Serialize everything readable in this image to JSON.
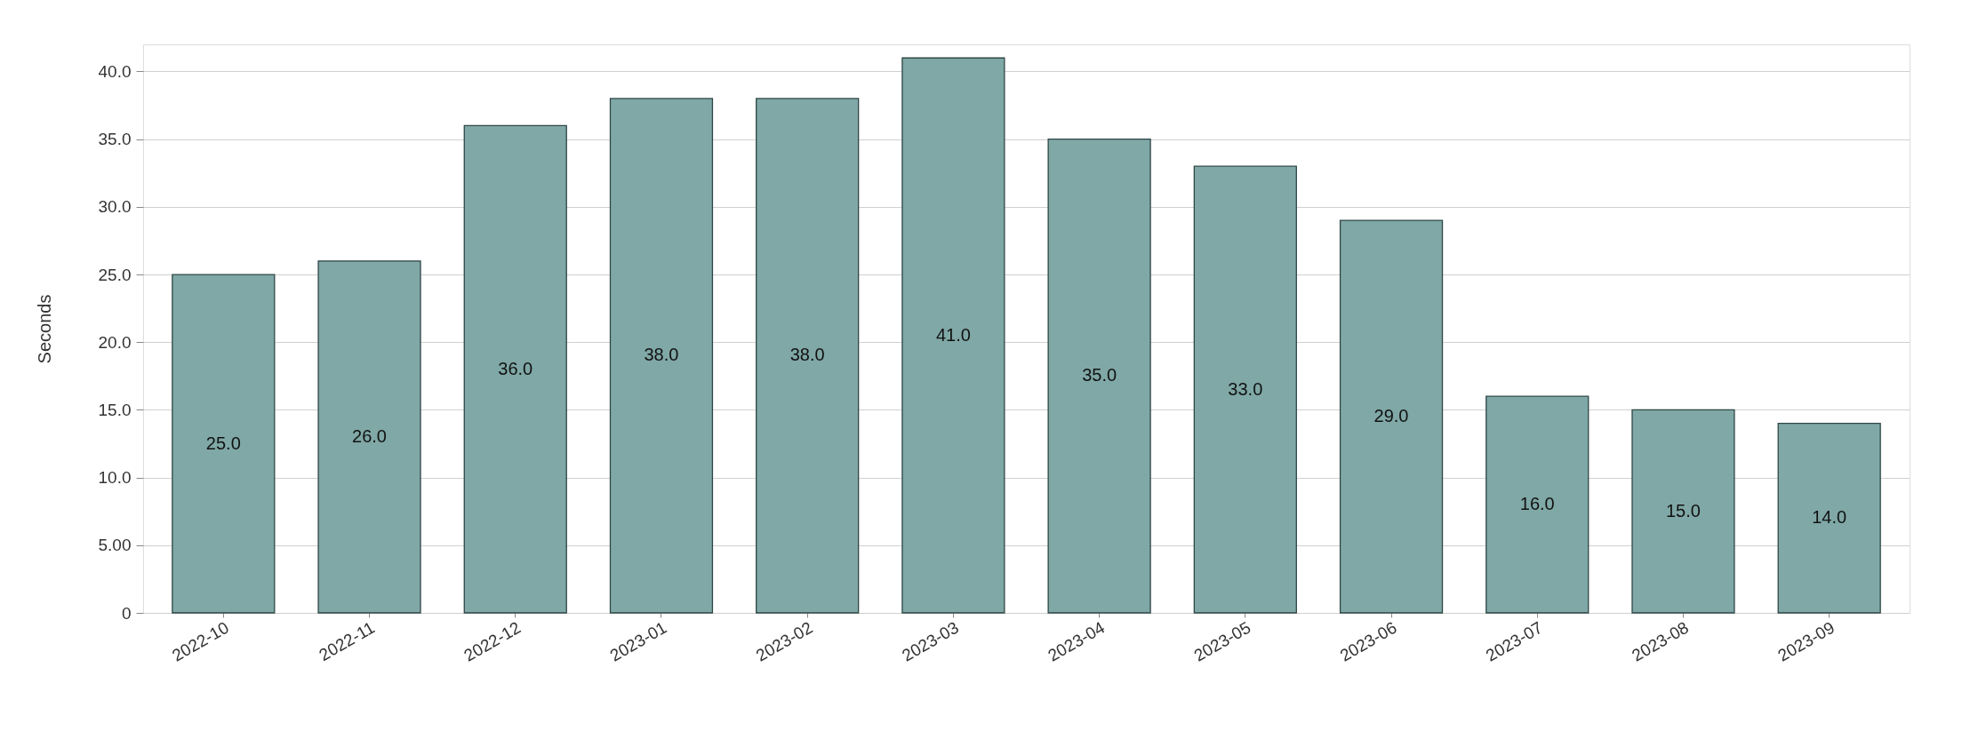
{
  "chart_data": {
    "type": "bar",
    "ylabel": "Seconds",
    "categories": [
      "2022-10",
      "2022-11",
      "2022-12",
      "2023-01",
      "2023-02",
      "2023-03",
      "2023-04",
      "2023-05",
      "2023-06",
      "2023-07",
      "2023-08",
      "2023-09"
    ],
    "values": [
      25.0,
      26.0,
      36.0,
      38.0,
      38.0,
      41.0,
      35.0,
      33.0,
      29.0,
      16.0,
      15.0,
      14.0
    ],
    "color": "#7fa8a6",
    "ylim": [
      0,
      42
    ],
    "yticks": [
      0,
      {
        "value": 5,
        "label": "5.00"
      },
      {
        "value": 10,
        "label": "10.0"
      },
      {
        "value": 15,
        "label": "15.0"
      },
      {
        "value": 20,
        "label": "20.0"
      },
      {
        "value": 25,
        "label": "25.0"
      },
      {
        "value": 30,
        "label": "30.0"
      },
      {
        "value": 35,
        "label": "35.0"
      },
      {
        "value": 40,
        "label": "40.0"
      }
    ],
    "value_labels": [
      "25.0",
      "26.0",
      "36.0",
      "38.0",
      "38.0",
      "41.0",
      "35.0",
      "33.0",
      "29.0",
      "16.0",
      "15.0",
      "14.0"
    ],
    "grid": "y"
  }
}
